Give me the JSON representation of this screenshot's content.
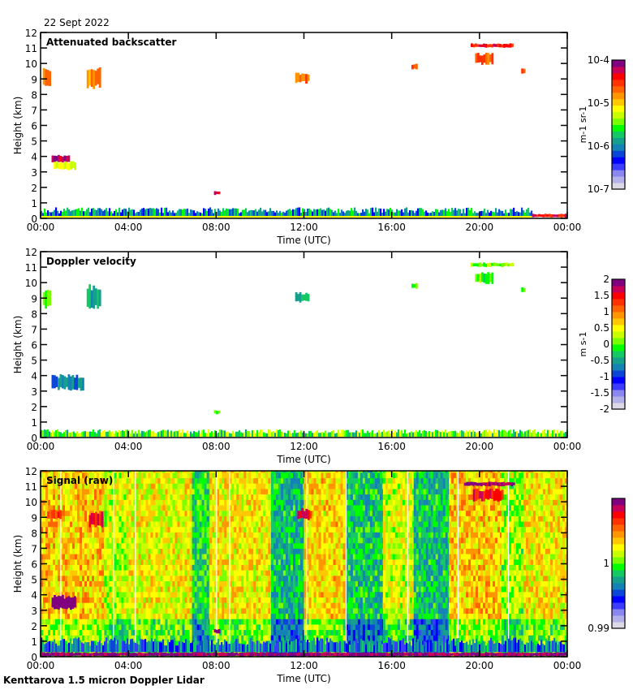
{
  "header": {
    "date": "22 Sept 2022"
  },
  "footer": {
    "instrument": "Kenttarova 1.5 micron Doppler Lidar"
  },
  "colormap": [
    "#dcd8e6",
    "#b4b0e8",
    "#8a88f0",
    "#3c3cff",
    "#0000ff",
    "#0a46d8",
    "#1482b4",
    "#14a08c",
    "#14c864",
    "#00ff00",
    "#78ff00",
    "#c8ff00",
    "#ffff00",
    "#ffc800",
    "#ff9600",
    "#ff6400",
    "#ff3200",
    "#ff0000",
    "#c8005a",
    "#800080"
  ],
  "chart_data": [
    {
      "type": "heatmap",
      "title": "Attenuated backscatter",
      "xlabel": "Time (UTC)",
      "ylabel": "Height (km)",
      "xlim": [
        0,
        24
      ],
      "ylim": [
        0,
        12
      ],
      "x_ticks": [
        "00:00",
        "04:00",
        "08:00",
        "12:00",
        "16:00",
        "20:00",
        "00:00"
      ],
      "y_ticks": [
        "0",
        "1",
        "2",
        "3",
        "4",
        "5",
        "6",
        "7",
        "8",
        "9",
        "10",
        "11",
        "12"
      ],
      "colorbar": {
        "label": "m-1 sr-1",
        "scale": "log",
        "range": [
          1e-07,
          0.0001
        ],
        "ticks": [
          "10-7",
          "10-6",
          "10-5",
          "10-4"
        ]
      },
      "features": [
        {
          "t": [
            0.1,
            0.4
          ],
          "h": [
            8.3,
            9.7
          ],
          "level": 0.78
        },
        {
          "t": [
            2.1,
            2.7
          ],
          "h": [
            8.3,
            9.9
          ],
          "level": 0.76
        },
        {
          "t": [
            0.5,
            1.3
          ],
          "h": [
            3.6,
            4.1
          ],
          "level": 0.95
        },
        {
          "t": [
            0.6,
            1.6
          ],
          "h": [
            3.1,
            3.7
          ],
          "level": 0.6
        },
        {
          "t": [
            7.9,
            8.1
          ],
          "h": [
            1.5,
            1.8
          ],
          "level": 0.92
        },
        {
          "t": [
            11.6,
            12.2
          ],
          "h": [
            8.7,
            9.4
          ],
          "level": 0.78
        },
        {
          "t": [
            16.9,
            17.1
          ],
          "h": [
            9.6,
            10.0
          ],
          "level": 0.8
        },
        {
          "t": [
            19.6,
            21.5
          ],
          "h": [
            11.0,
            11.3
          ],
          "level": 0.88
        },
        {
          "t": [
            19.8,
            20.6
          ],
          "h": [
            9.9,
            10.7
          ],
          "level": 0.82
        },
        {
          "t": [
            21.9,
            22.0
          ],
          "h": [
            9.3,
            9.7
          ],
          "level": 0.78
        },
        {
          "t": [
            0,
            22.4
          ],
          "h": [
            0.05,
            0.6
          ],
          "level": 0.35,
          "noise": true
        },
        {
          "t": [
            22.4,
            24
          ],
          "h": [
            0.05,
            0.3
          ],
          "level": 0.9
        }
      ]
    },
    {
      "type": "heatmap",
      "title": "Doppler velocity",
      "xlabel": "Time (UTC)",
      "ylabel": "Height (km)",
      "xlim": [
        0,
        24
      ],
      "ylim": [
        0,
        12
      ],
      "x_ticks": [
        "00:00",
        "04:00",
        "08:00",
        "12:00",
        "16:00",
        "20:00",
        "00:00"
      ],
      "y_ticks": [
        "0",
        "1",
        "2",
        "3",
        "4",
        "5",
        "6",
        "7",
        "8",
        "9",
        "10",
        "11",
        "12"
      ],
      "colorbar": {
        "label": "m s-1",
        "scale": "linear",
        "range": [
          -2,
          2
        ],
        "ticks": [
          "-2",
          "-1.5",
          "-1",
          "-0.5",
          "0",
          "0.5",
          "1",
          "1.5",
          "2"
        ]
      },
      "features": [
        {
          "t": [
            0.1,
            0.4
          ],
          "h": [
            8.3,
            9.7
          ],
          "level": 0.5
        },
        {
          "t": [
            2.1,
            2.7
          ],
          "h": [
            8.3,
            9.9
          ],
          "level": 0.38
        },
        {
          "t": [
            0.5,
            1.9
          ],
          "h": [
            3.0,
            4.1
          ],
          "level": 0.33
        },
        {
          "t": [
            7.9,
            8.1
          ],
          "h": [
            1.5,
            1.8
          ],
          "level": 0.52
        },
        {
          "t": [
            11.6,
            12.2
          ],
          "h": [
            8.7,
            9.4
          ],
          "level": 0.38
        },
        {
          "t": [
            16.9,
            17.1
          ],
          "h": [
            9.6,
            10.0
          ],
          "level": 0.5
        },
        {
          "t": [
            19.6,
            21.5
          ],
          "h": [
            11.0,
            11.3
          ],
          "level": 0.52
        },
        {
          "t": [
            19.8,
            20.6
          ],
          "h": [
            9.9,
            10.7
          ],
          "level": 0.5
        },
        {
          "t": [
            21.9,
            22.0
          ],
          "h": [
            9.3,
            9.7
          ],
          "level": 0.45
        },
        {
          "t": [
            0,
            24
          ],
          "h": [
            0.05,
            0.45
          ],
          "level": 0.5,
          "noise": true
        }
      ]
    },
    {
      "type": "heatmap",
      "title": "Signal (raw)",
      "xlabel": "Time (UTC)",
      "ylabel": "Height (km)",
      "xlim": [
        0,
        24
      ],
      "ylim": [
        0,
        12
      ],
      "x_ticks": [
        "00:00",
        "04:00",
        "08:00",
        "12:00",
        "16:00",
        "20:00",
        "00:00"
      ],
      "y_ticks": [
        "0",
        "1",
        "2",
        "3",
        "4",
        "5",
        "6",
        "7",
        "8",
        "9",
        "10",
        "11",
        "12"
      ],
      "colorbar": {
        "label": "",
        "scale": "linear",
        "range": [
          0.99,
          1.01
        ],
        "ticks": [
          "0.99",
          "1"
        ]
      },
      "background_bands": [
        {
          "t": [
            0,
            2.9
          ],
          "level": 0.68
        },
        {
          "t": [
            2.9,
            3.9
          ],
          "level": 0.58
        },
        {
          "t": [
            3.9,
            6.9
          ],
          "level": 0.62
        },
        {
          "t": [
            6.9,
            7.7
          ],
          "level": 0.45
        },
        {
          "t": [
            7.7,
            10.5
          ],
          "level": 0.64
        },
        {
          "t": [
            10.5,
            12.0
          ],
          "level": 0.4
        },
        {
          "t": [
            12.0,
            13.9
          ],
          "level": 0.66
        },
        {
          "t": [
            13.9,
            15.6
          ],
          "level": 0.42
        },
        {
          "t": [
            15.6,
            17.0
          ],
          "level": 0.6
        },
        {
          "t": [
            17.0,
            18.6
          ],
          "level": 0.4
        },
        {
          "t": [
            18.6,
            21.0
          ],
          "level": 0.68
        },
        {
          "t": [
            21.0,
            22.0
          ],
          "level": 0.55
        },
        {
          "t": [
            22.0,
            24
          ],
          "level": 0.64
        }
      ],
      "features": [
        {
          "t": [
            0.5,
            1.6
          ],
          "h": [
            3.0,
            4.0
          ],
          "level": 1.0
        },
        {
          "t": [
            2.2,
            2.8
          ],
          "h": [
            8.3,
            9.4
          ],
          "level": 0.92
        },
        {
          "t": [
            0.3,
            0.9
          ],
          "h": [
            8.8,
            9.5
          ],
          "level": 0.85
        },
        {
          "t": [
            11.7,
            12.3
          ],
          "h": [
            8.8,
            9.6
          ],
          "level": 0.9
        },
        {
          "t": [
            19.3,
            21.6
          ],
          "h": [
            11.0,
            11.3
          ],
          "level": 0.97
        },
        {
          "t": [
            19.7,
            21.0
          ],
          "h": [
            10.0,
            10.9
          ],
          "level": 0.9
        },
        {
          "t": [
            7.9,
            8.1
          ],
          "h": [
            1.5,
            1.8
          ],
          "level": 1.0
        },
        {
          "t": [
            0,
            24
          ],
          "h": [
            0.3,
            1.1
          ],
          "level": 0.3,
          "noise": true
        },
        {
          "t": [
            0,
            24
          ],
          "h": [
            0.0,
            0.3
          ],
          "level": 1.0
        }
      ]
    }
  ]
}
